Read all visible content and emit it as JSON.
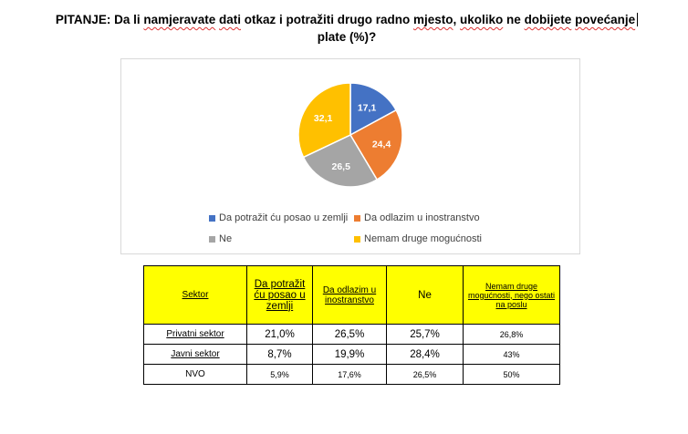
{
  "question": {
    "part1": "PITANJE: Da li ",
    "w1": "namjeravate",
    "part2": " ",
    "w2": "dati",
    "part3": " otkaz i potražiti drugo radno ",
    "w3": "mjesto",
    "part4": ", ",
    "w4": "ukoliko",
    "part5": " ne ",
    "w5": "dobijete",
    "part6": " ",
    "w6": "povećanje",
    "line2": "plate (%)?"
  },
  "colors": {
    "blue": "#4472c4",
    "orange": "#ed7d31",
    "gray": "#a5a5a5",
    "yellow": "#ffc000",
    "table_header": "#ffff00"
  },
  "chart_data": {
    "type": "pie",
    "title": "",
    "slices": [
      {
        "name": "Da potražit ću posao u zemlji",
        "value": 17.1,
        "label": "17,1",
        "color": "#4472c4"
      },
      {
        "name": "Da odlazim u inostranstvo",
        "value": 24.4,
        "label": "24,4",
        "color": "#ed7d31"
      },
      {
        "name": "Ne",
        "value": 26.5,
        "label": "26,5",
        "color": "#a5a5a5"
      },
      {
        "name": "Nemam druge mogućnosti",
        "value": 32.1,
        "label": "32,1",
        "color": "#ffc000"
      }
    ],
    "legend_placement": "bottom"
  },
  "table": {
    "headers": [
      "Sektor",
      "Da potražit ću posao u zemlji",
      "Da odlazim u inostranstvo",
      "Ne",
      "Nemam druge mogućnosti, nego ostati na poslu"
    ],
    "rows": [
      {
        "sector": "Privatni sektor",
        "c1": "21,0%",
        "c2": "26,5%",
        "c3": "25,7%",
        "c4": "26,8%"
      },
      {
        "sector": "Javni sektor",
        "c1": "8,7%",
        "c2": "19,9%",
        "c3": "28,4%",
        "c4": "43%"
      },
      {
        "sector": "NVO",
        "c1": "5,9%",
        "c2": "17,6%",
        "c3": "26,5%",
        "c4": "50%"
      }
    ]
  }
}
